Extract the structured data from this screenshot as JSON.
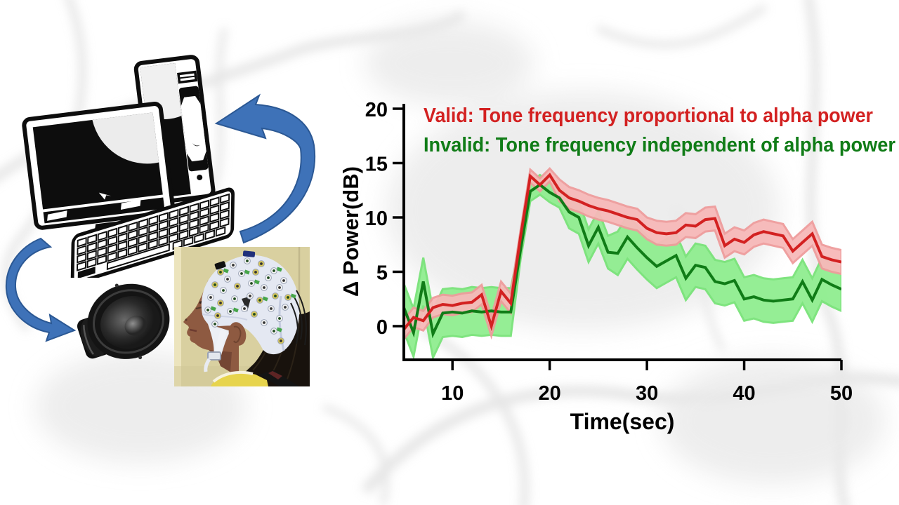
{
  "figure": {
    "description_icons": {
      "computer_icon": "desktop-computer",
      "speaker_icon": "loudspeaker-woofer",
      "eeg_photo": "participant-wearing-eeg-electrode-cap",
      "arrow_up_icon": "curved-arrow-eeg-to-computer",
      "arrow_down_icon": "curved-arrow-computer-to-speaker"
    },
    "accent_colors": {
      "arrow_blue": "#3e72b8",
      "arrow_blue_edge": "#2b5894"
    }
  },
  "chart_data": {
    "type": "line",
    "title": "",
    "xlabel": "Time(sec)",
    "ylabel": "Δ Power(dB)",
    "xlim": [
      5,
      50
    ],
    "ylim": [
      -3,
      20
    ],
    "xticks": [
      10,
      20,
      30,
      40,
      50
    ],
    "yticks": [
      0,
      5,
      10,
      15,
      20
    ],
    "grid": false,
    "legend_position": "top-left-inside",
    "x": [
      5,
      6,
      7,
      8,
      9,
      10,
      11,
      12,
      13,
      14,
      15,
      16,
      17,
      18,
      19,
      20,
      21,
      22,
      23,
      24,
      25,
      26,
      27,
      28,
      29,
      30,
      31,
      32,
      33,
      34,
      35,
      36,
      37,
      38,
      39,
      40,
      41,
      42,
      43,
      44,
      45,
      46,
      47,
      48,
      49,
      50
    ],
    "series": [
      {
        "name": "Valid: Tone frequency proportional to alpha power",
        "color": "#d32121",
        "band_color": "#f7b9b9",
        "band_edge": "#ef9c9c",
        "values": [
          -0.3,
          0.8,
          0.5,
          1.7,
          2.0,
          1.9,
          2.1,
          2.2,
          2.9,
          0.0,
          3.2,
          2.1,
          8.2,
          13.8,
          13.0,
          13.9,
          12.5,
          11.8,
          11.5,
          11.1,
          10.8,
          10.6,
          10.3,
          10.0,
          9.8,
          9.0,
          8.6,
          8.5,
          8.6,
          9.3,
          9.2,
          9.8,
          9.9,
          7.4,
          8.0,
          7.7,
          8.4,
          8.7,
          8.5,
          8.3,
          6.9,
          7.7,
          8.5,
          6.4,
          6.1,
          5.9
        ],
        "band_halfwidth": [
          0.9,
          0.9,
          0.9,
          0.9,
          0.9,
          0.9,
          0.9,
          0.9,
          0.9,
          0.9,
          0.9,
          0.9,
          0.6,
          0.6,
          0.6,
          0.6,
          1.0,
          1.0,
          1.0,
          1.0,
          1.0,
          1.0,
          1.0,
          1.0,
          1.0,
          1.0,
          1.1,
          1.1,
          1.1,
          1.1,
          1.1,
          1.1,
          1.1,
          1.1,
          1.1,
          1.1,
          1.1,
          1.1,
          1.1,
          1.1,
          1.1,
          1.1,
          1.1,
          1.1,
          1.1,
          1.1
        ]
      },
      {
        "name": "Invalid: Tone frequency independent of alpha power",
        "color": "#107c17",
        "band_color": "#90ee90",
        "band_edge": "#79e379",
        "values": [
          1.7,
          -0.6,
          4.1,
          -0.7,
          1.2,
          1.3,
          1.2,
          1.4,
          1.3,
          1.4,
          1.3,
          1.3,
          7.0,
          12.4,
          13.0,
          12.3,
          11.8,
          10.5,
          10.0,
          7.4,
          9.1,
          6.8,
          6.7,
          8.2,
          7.2,
          6.3,
          5.5,
          6.0,
          6.5,
          4.4,
          5.6,
          5.4,
          4.1,
          3.9,
          4.2,
          2.5,
          2.7,
          2.4,
          2.3,
          2.4,
          2.5,
          4.1,
          2.4,
          4.3,
          3.8,
          3.4
        ],
        "band_halfwidth": [
          2.2,
          2.2,
          2.2,
          2.2,
          2.2,
          2.2,
          2.2,
          2.2,
          2.2,
          2.2,
          2.2,
          2.2,
          0.9,
          0.9,
          0.9,
          0.9,
          0.9,
          1.5,
          1.5,
          1.5,
          1.5,
          1.5,
          2.0,
          2.0,
          2.0,
          2.0,
          2.0,
          2.0,
          2.0,
          2.0,
          2.0,
          2.0,
          2.0,
          2.0,
          2.0,
          2.0,
          2.0,
          2.0,
          2.0,
          2.0,
          2.0,
          2.0,
          2.0,
          2.0,
          2.0,
          2.0
        ]
      }
    ]
  }
}
